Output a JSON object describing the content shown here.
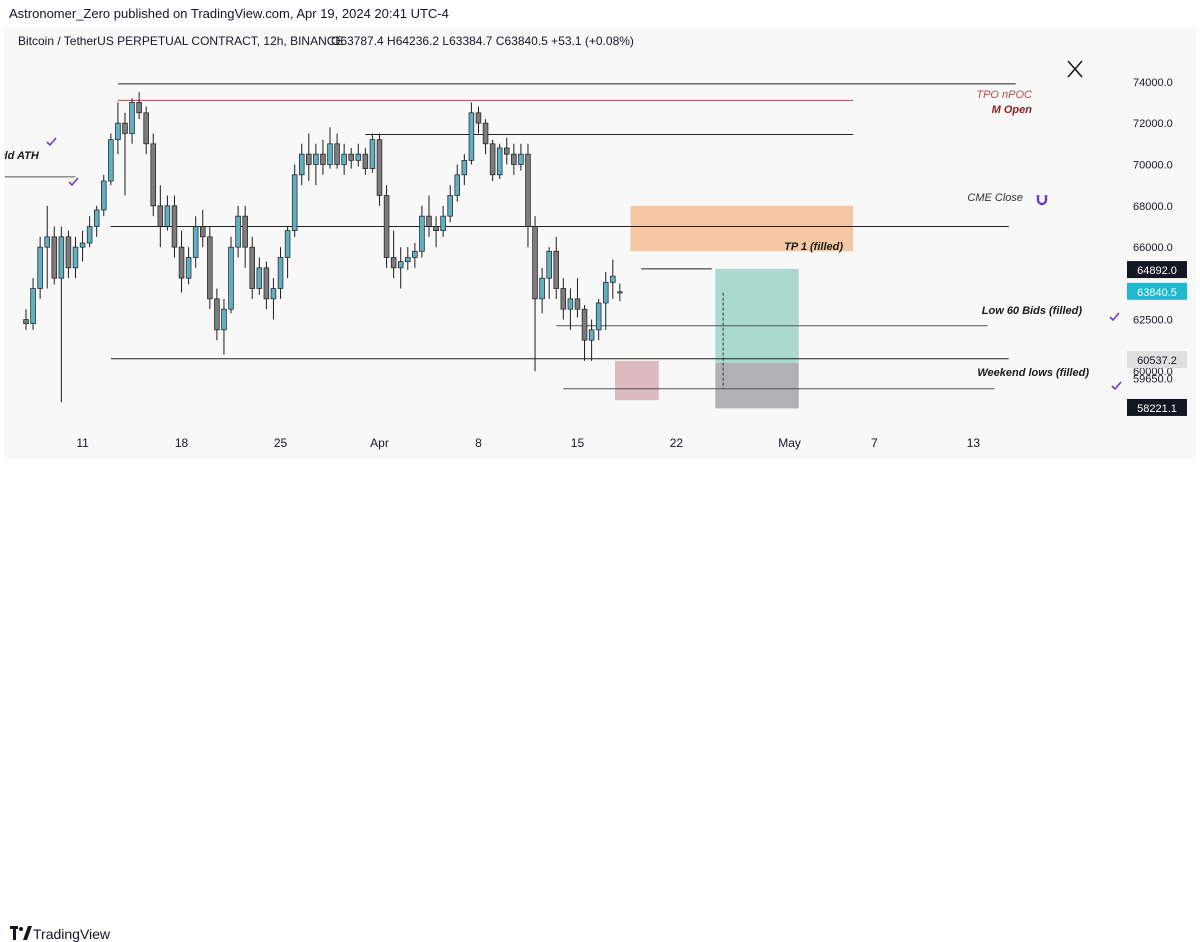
{
  "header": {
    "published": "Astronomer_Zero published on TradingView.com, Apr 19, 2024 20:41 UTC-4"
  },
  "footer": {
    "brand": "TradingView"
  },
  "colors": {
    "bull": "#5fb0c0",
    "bear": "#7c7c7c",
    "outline": "#1c1c1c",
    "supply_zone": "#f2bb8c",
    "tpo": "#b04a4a",
    "tp_zone": "#8fcfc2",
    "sl_zone": "#9e9ea4",
    "wick_box": "#d6aab0",
    "badge_cyan": "#1db9cf",
    "badge_dark": "#131722",
    "check": "#6a3fc8"
  },
  "chart_data": {
    "type": "candlestick",
    "title": "Bitcoin / TetherUS PERPETUAL CONTRACT, 12h, BINANCE",
    "ohlc_label": "O63787.4  H64236.2  L63384.7  C63840.5  +53.1 (+0.08%)",
    "ylim": [
      57300,
      75200
    ],
    "y_ticks": [
      {
        "v": 74000,
        "label": "74000.0"
      },
      {
        "v": 72000,
        "label": "72000.0"
      },
      {
        "v": 70000,
        "label": "70000.0"
      },
      {
        "v": 68000,
        "label": "68000.0"
      },
      {
        "v": 66000,
        "label": "66000.0"
      },
      {
        "v": 62500,
        "label": "62500.0"
      },
      {
        "v": 60000,
        "label": "60000.0"
      },
      {
        "v": 59650,
        "label": "59650.0"
      }
    ],
    "x_ticks": [
      {
        "t": 8,
        "label": "11"
      },
      {
        "t": 22,
        "label": "18"
      },
      {
        "t": 36,
        "label": "25"
      },
      {
        "t": 50,
        "label": "Apr"
      },
      {
        "t": 64,
        "label": "8"
      },
      {
        "t": 78,
        "label": "15"
      },
      {
        "t": 92,
        "label": "22"
      },
      {
        "t": 108,
        "label": "May"
      },
      {
        "t": 120,
        "label": "7"
      },
      {
        "t": 134,
        "label": "13"
      }
    ],
    "price_badges": [
      {
        "v": 64892.0,
        "label": "64892.0",
        "style": "dark"
      },
      {
        "v": 63840.5,
        "label": "63840.5",
        "style": "cyan"
      },
      {
        "v": 60537.2,
        "label": "60537.2",
        "style": "gray"
      },
      {
        "v": 58221.1,
        "label": "58221.1",
        "style": "dark"
      }
    ],
    "candles": [
      [
        62500,
        63000,
        62000,
        62300
      ],
      [
        62300,
        64500,
        62000,
        64000
      ],
      [
        64000,
        66500,
        63500,
        66000
      ],
      [
        66000,
        68000,
        64000,
        66500
      ],
      [
        66500,
        67000,
        64200,
        64500
      ],
      [
        64500,
        67000,
        58500,
        66500
      ],
      [
        66500,
        66800,
        64500,
        65000
      ],
      [
        65000,
        66500,
        64500,
        66000
      ],
      [
        66000,
        66800,
        65300,
        66200
      ],
      [
        66200,
        67500,
        66000,
        67000
      ],
      [
        67000,
        68000,
        66500,
        67800
      ],
      [
        67800,
        69500,
        67500,
        69200
      ],
      [
        69200,
        71500,
        69000,
        71200
      ],
      [
        71200,
        73000,
        70500,
        72000
      ],
      [
        72000,
        72500,
        68500,
        71500
      ],
      [
        71500,
        73200,
        71000,
        73000
      ],
      [
        73000,
        73500,
        72200,
        72500
      ],
      [
        72500,
        72800,
        70500,
        71000
      ],
      [
        71000,
        71500,
        67500,
        68000
      ],
      [
        68000,
        69000,
        66000,
        67000
      ],
      [
        67000,
        68500,
        66800,
        68000
      ],
      [
        68000,
        68500,
        65500,
        66000
      ],
      [
        66000,
        66800,
        63800,
        64500
      ],
      [
        64500,
        66000,
        64200,
        65500
      ],
      [
        65500,
        67500,
        65000,
        67000
      ],
      [
        67000,
        67800,
        66000,
        66500
      ],
      [
        66500,
        67000,
        63000,
        63500
      ],
      [
        63500,
        64000,
        61500,
        62000
      ],
      [
        62000,
        63500,
        60800,
        63000
      ],
      [
        63000,
        66500,
        62800,
        66000
      ],
      [
        66000,
        68000,
        65500,
        67500
      ],
      [
        67500,
        68000,
        65000,
        66000
      ],
      [
        66000,
        66500,
        63500,
        64000
      ],
      [
        64000,
        65500,
        63700,
        65000
      ],
      [
        65000,
        65300,
        63000,
        63500
      ],
      [
        63500,
        64500,
        62500,
        64000
      ],
      [
        64000,
        66000,
        63500,
        65500
      ],
      [
        65500,
        67000,
        64500,
        66800
      ],
      [
        66800,
        70000,
        66500,
        69500
      ],
      [
        69500,
        71000,
        69000,
        70500
      ],
      [
        70500,
        71500,
        69200,
        70000
      ],
      [
        70000,
        71000,
        69000,
        70500
      ],
      [
        70500,
        71200,
        69500,
        70000
      ],
      [
        70000,
        71800,
        69800,
        71000
      ],
      [
        71000,
        71500,
        69800,
        70000
      ],
      [
        70000,
        71000,
        69500,
        70500
      ],
      [
        70500,
        70800,
        69800,
        70200
      ],
      [
        70200,
        71000,
        69900,
        70500
      ],
      [
        70500,
        70800,
        69500,
        69800
      ],
      [
        69800,
        71500,
        69600,
        71200
      ],
      [
        71200,
        71500,
        68000,
        68500
      ],
      [
        68500,
        69000,
        65000,
        65500
      ],
      [
        65500,
        66800,
        64500,
        65000
      ],
      [
        65000,
        66000,
        64000,
        65300
      ],
      [
        65300,
        66000,
        64900,
        65500
      ],
      [
        65500,
        66200,
        65000,
        65800
      ],
      [
        65800,
        68000,
        65500,
        67500
      ],
      [
        67500,
        68500,
        66500,
        67000
      ],
      [
        67000,
        67500,
        66000,
        66800
      ],
      [
        66800,
        68000,
        66500,
        67500
      ],
      [
        67500,
        69000,
        67200,
        68500
      ],
      [
        68500,
        70000,
        68200,
        69500
      ],
      [
        69500,
        70500,
        69000,
        70200
      ],
      [
        70200,
        73000,
        70000,
        72500
      ],
      [
        72500,
        72800,
        71500,
        72000
      ],
      [
        72000,
        72200,
        70500,
        71000
      ],
      [
        71000,
        71200,
        69200,
        69500
      ],
      [
        69500,
        71000,
        69300,
        70800
      ],
      [
        70800,
        71300,
        70000,
        70500
      ],
      [
        70500,
        71000,
        69500,
        70000
      ],
      [
        70000,
        71000,
        69700,
        70500
      ],
      [
        70500,
        71000,
        66000,
        67000
      ],
      [
        67000,
        67500,
        60000,
        63500
      ],
      [
        63500,
        65000,
        62800,
        64500
      ],
      [
        64500,
        66000,
        63500,
        65800
      ],
      [
        65800,
        66500,
        63500,
        64000
      ],
      [
        64000,
        64500,
        62500,
        63000
      ],
      [
        63000,
        64000,
        62000,
        63500
      ],
      [
        63500,
        64500,
        62600,
        63000
      ],
      [
        63000,
        63200,
        60500,
        61500
      ],
      [
        61500,
        62500,
        60500,
        62000
      ],
      [
        62000,
        63500,
        61500,
        63300
      ],
      [
        63300,
        64800,
        62000,
        64300
      ],
      [
        64300,
        65400,
        63500,
        64600
      ],
      [
        63787.4,
        64236.2,
        63384.7,
        63840.5
      ]
    ]
  },
  "levels": [
    {
      "v": 73900,
      "t0": 13,
      "t1": 140,
      "color": "#222222"
    },
    {
      "v": 73100,
      "t0": 13,
      "t1": 117,
      "color": "#b04a4a"
    },
    {
      "v": 71450,
      "t0": 48,
      "t1": 117,
      "color": "#222222"
    },
    {
      "v": 67000,
      "t0": 12,
      "t1": 139,
      "color": "#222222"
    },
    {
      "v": 64950,
      "t0": 87,
      "t1": 97,
      "color": "#222222"
    },
    {
      "v": 62200,
      "t0": 75,
      "t1": 136,
      "color": "#555555"
    },
    {
      "v": 60600,
      "t0": 12,
      "t1": 139,
      "color": "#222222"
    },
    {
      "v": 59150,
      "t0": 76,
      "t1": 137,
      "color": "#555555"
    },
    {
      "v": 69400,
      "t0": -3,
      "t1": 7,
      "color": "#555555"
    }
  ],
  "labels": {
    "tpo": "TPO nPOC",
    "m_open": "M Open",
    "cme": "CME Close",
    "tp1": "TP 1 (filled)",
    "low60": "Low 60 Bids (filled)",
    "weekend": "Weekend lows (filled)",
    "old_ath": "Old ATH"
  }
}
